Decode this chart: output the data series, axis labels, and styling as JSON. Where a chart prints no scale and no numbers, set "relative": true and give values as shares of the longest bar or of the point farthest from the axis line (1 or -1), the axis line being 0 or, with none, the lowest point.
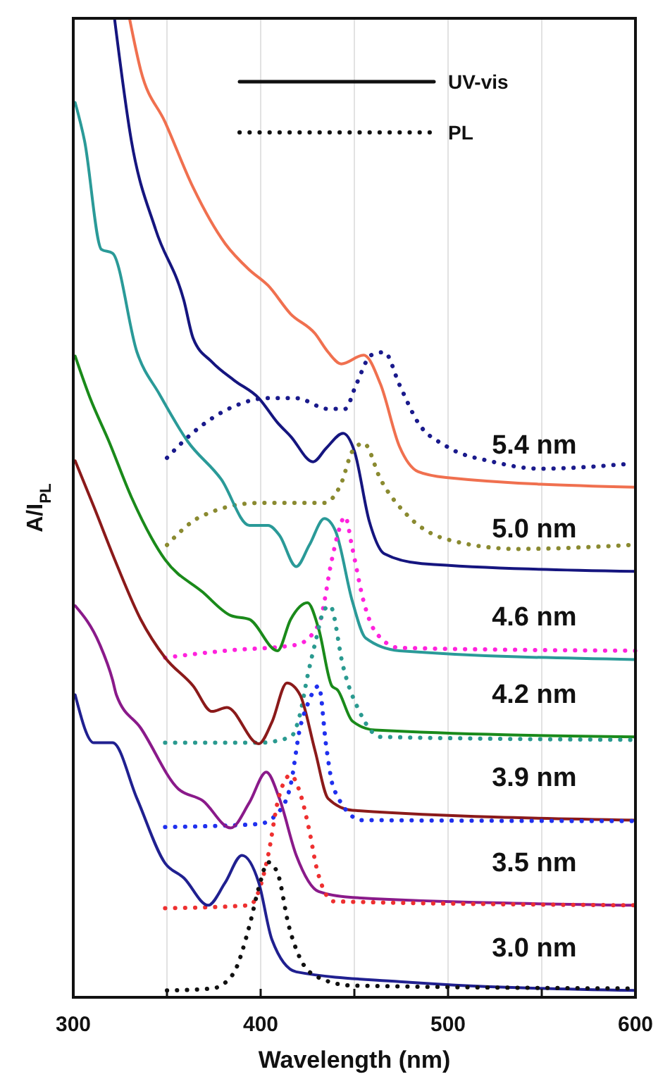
{
  "chart_data": {
    "type": "line",
    "xlabel": "Wavelength (nm)",
    "ylabel": "A/I$_{PL}$",
    "relative": true,
    "xlim": [
      300,
      600
    ],
    "xticks": [
      300,
      {
        "value": 350,
        "label": null
      },
      400,
      {
        "value": 450,
        "label": null
      },
      500,
      {
        "value": 550,
        "label": null
      },
      600
    ],
    "grid": "x",
    "annotations": [
      "UV-vis",
      "PL"
    ],
    "series": [
      {
        "name": "5.4 nm",
        "color": "#f0704f",
        "x": [
          330,
          336,
          349,
          364,
          381,
          394,
          404,
          416,
          429,
          436,
          443,
          455,
          464,
          474,
          484,
          499,
          600
        ],
        "values": [
          1.0,
          0.947,
          0.894,
          0.827,
          0.77,
          0.743,
          0.727,
          0.698,
          0.678,
          0.659,
          0.647,
          0.656,
          0.626,
          0.563,
          0.537,
          0.531,
          0.521
        ]
      },
      {
        "color": "#1a1a8c",
        "line_style": "dotted",
        "x": [
          350,
          364,
          385,
          404,
          419,
          436,
          445,
          451,
          459,
          466,
          474,
          484,
          499,
          524,
          549,
          597
        ],
        "values": [
          0.551,
          0.577,
          0.603,
          0.612,
          0.612,
          0.601,
          0.601,
          0.626,
          0.656,
          0.659,
          0.626,
          0.587,
          0.563,
          0.547,
          0.54,
          0.545
        ]
      },
      {
        "name": "5.0 nm",
        "color": "#15157f",
        "x": [
          322,
          331,
          344,
          359,
          364,
          374,
          386,
          399,
          409,
          416,
          428,
          435,
          444,
          450,
          458,
          466,
          486,
          600
        ],
        "values": [
          1.0,
          0.875,
          0.784,
          0.712,
          0.673,
          0.649,
          0.63,
          0.612,
          0.587,
          0.573,
          0.547,
          0.561,
          0.576,
          0.558,
          0.486,
          0.453,
          0.443,
          0.435
        ]
      },
      {
        "color": "#8a8a30",
        "line_style": "dotted",
        "x": [
          350,
          368,
          399,
          424,
          434,
          443,
          449,
          455,
          464,
          479,
          499,
          537,
          597
        ],
        "values": [
          0.462,
          0.491,
          0.505,
          0.505,
          0.505,
          0.525,
          0.558,
          0.566,
          0.529,
          0.491,
          0.468,
          0.458,
          0.462
        ]
      },
      {
        "name": "4.6 nm",
        "color": "#2a9a98",
        "x": [
          301,
          306,
          315,
          321,
          334,
          346,
          361,
          379,
          394,
          404,
          410,
          419,
          426,
          434,
          440,
          449,
          456,
          474,
          600
        ],
        "values": [
          0.914,
          0.875,
          0.764,
          0.76,
          0.659,
          0.616,
          0.568,
          0.529,
          0.482,
          0.482,
          0.472,
          0.44,
          0.462,
          0.489,
          0.476,
          0.404,
          0.367,
          0.354,
          0.345
        ]
      },
      {
        "color": "#ff22dd",
        "line_style": "dotted",
        "x": [
          349,
          381,
          419,
          431,
          438,
          441,
          445,
          449,
          455,
          461,
          474,
          600
        ],
        "values": [
          0.347,
          0.354,
          0.36,
          0.381,
          0.447,
          0.472,
          0.491,
          0.458,
          0.404,
          0.374,
          0.357,
          0.354
        ]
      },
      {
        "name": "4.2 nm",
        "color": "#1a8a1a",
        "x": [
          301,
          309,
          319,
          331,
          349,
          369,
          384,
          394,
          409,
          416,
          425,
          431,
          438,
          441,
          449,
          461,
          600
        ],
        "values": [
          0.655,
          0.612,
          0.568,
          0.511,
          0.447,
          0.414,
          0.39,
          0.386,
          0.354,
          0.386,
          0.403,
          0.376,
          0.318,
          0.314,
          0.282,
          0.273,
          0.266
        ]
      },
      {
        "color": "#2a9a90",
        "line_style": "dotted",
        "x": [
          349,
          399,
          416,
          421,
          425,
          429,
          434,
          437,
          444,
          447,
          451,
          464,
          600
        ],
        "values": [
          0.26,
          0.26,
          0.266,
          0.289,
          0.328,
          0.361,
          0.396,
          0.4,
          0.338,
          0.318,
          0.299,
          0.266,
          0.263
        ]
      },
      {
        "name": "3.9 nm",
        "color": "#8b1a1a",
        "x": [
          301,
          311,
          323,
          336,
          349,
          364,
          374,
          382,
          399,
          406,
          414,
          421,
          429,
          436,
          449,
          600
        ],
        "values": [
          0.548,
          0.501,
          0.443,
          0.386,
          0.347,
          0.318,
          0.292,
          0.296,
          0.259,
          0.281,
          0.321,
          0.309,
          0.252,
          0.203,
          0.191,
          0.181
        ]
      },
      {
        "color": "#2030ee",
        "line_style": "dotted",
        "x": [
          349,
          399,
          409,
          416,
          421,
          425,
          431,
          435,
          439,
          454,
          600
        ],
        "values": [
          0.174,
          0.177,
          0.188,
          0.217,
          0.275,
          0.299,
          0.318,
          0.256,
          0.213,
          0.181,
          0.18
        ]
      },
      {
        "name": "3.5 nm",
        "color": "#8a1a8a",
        "x": [
          301,
          314,
          321,
          323,
          336,
          356,
          369,
          384,
          394,
          403,
          410,
          419,
          431,
          449,
          600
        ],
        "values": [
          0.4,
          0.361,
          0.324,
          0.309,
          0.275,
          0.213,
          0.201,
          0.173,
          0.199,
          0.23,
          0.203,
          0.145,
          0.108,
          0.102,
          0.094
        ]
      },
      {
        "color": "#ee3030",
        "line_style": "dotted",
        "x": [
          349,
          394,
          404,
          409,
          416,
          421,
          426,
          430,
          439,
          600
        ],
        "values": [
          0.091,
          0.094,
          0.145,
          0.199,
          0.227,
          0.209,
          0.17,
          0.131,
          0.098,
          0.094
        ]
      },
      {
        "name": "3.0 nm",
        "color": "#202090",
        "x": [
          301,
          311,
          321,
          334,
          349,
          359,
          372,
          381,
          390,
          399,
          406,
          419,
          474,
          600
        ],
        "values": [
          0.309,
          0.26,
          0.26,
          0.203,
          0.137,
          0.122,
          0.094,
          0.117,
          0.145,
          0.117,
          0.059,
          0.026,
          0.016,
          0.007
        ]
      },
      {
        "color": "#111111",
        "line_style": "dotted",
        "x": [
          350,
          374,
          385,
          394,
          399,
          404,
          409,
          415,
          421,
          429,
          449,
          600
        ],
        "values": [
          0.007,
          0.009,
          0.023,
          0.073,
          0.112,
          0.138,
          0.127,
          0.073,
          0.04,
          0.022,
          0.012,
          0.009
        ]
      }
    ]
  }
}
